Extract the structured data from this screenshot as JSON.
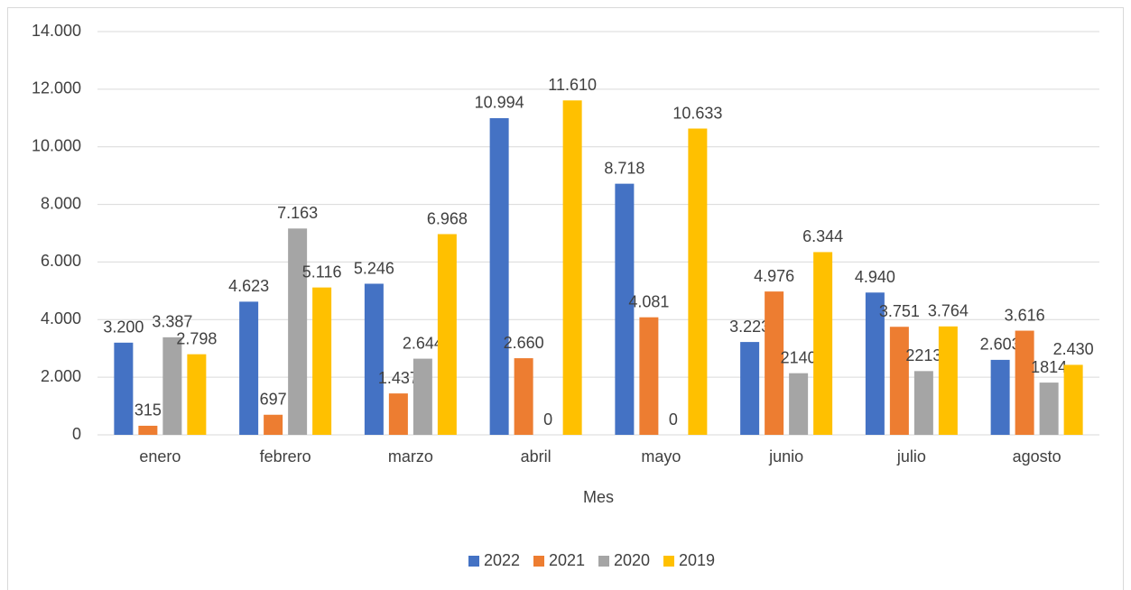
{
  "chart_data": {
    "type": "bar",
    "x_label": "Mes",
    "categories": [
      "enero",
      "febrero",
      "marzo",
      "abril",
      "mayo",
      "junio",
      "julio",
      "agosto"
    ],
    "series": [
      {
        "name": "2022",
        "color": "#4472c4",
        "values": [
          3200,
          4623,
          5246,
          10994,
          8718,
          3223,
          4940,
          2603
        ],
        "value_labels": [
          "3.200",
          "4.623",
          "5.246",
          "10.994",
          "8.718",
          "3.223",
          "4.940",
          "2.603"
        ]
      },
      {
        "name": "2021",
        "color": "#ed7d31",
        "values": [
          315,
          697,
          1437,
          2660,
          4081,
          4976,
          3751,
          3616
        ],
        "value_labels": [
          "315",
          "697",
          "1.437",
          "2.660",
          "4.081",
          "4.976",
          "3.751",
          "3.616"
        ]
      },
      {
        "name": "2020",
        "color": "#a5a5a5",
        "values": [
          3387,
          7163,
          2644,
          0,
          0,
          2140,
          2213,
          1814
        ],
        "value_labels": [
          "3.387",
          "7.163",
          "2.644",
          "0",
          "0",
          "2140",
          "2213",
          "1814"
        ]
      },
      {
        "name": "2019",
        "color": "#ffc000",
        "values": [
          2798,
          5116,
          6968,
          11610,
          10633,
          6344,
          3764,
          2430
        ],
        "value_labels": [
          "2.798",
          "5.116",
          "6.968",
          "11.610",
          "10.633",
          "6.344",
          "3.764",
          "2.430"
        ]
      }
    ],
    "ylim": [
      0,
      14000
    ],
    "yticks": [
      0,
      {
        "value": 2000,
        "label": "2.000"
      },
      {
        "value": 4000,
        "label": "4.000"
      },
      {
        "value": 6000,
        "label": "6.000"
      },
      {
        "value": 8000,
        "label": "8.000"
      },
      {
        "value": 10000,
        "label": "10.000"
      },
      {
        "value": 12000,
        "label": "12.000"
      },
      {
        "value": 14000,
        "label": "14.000"
      }
    ],
    "grid": true,
    "legend": "bottom"
  }
}
